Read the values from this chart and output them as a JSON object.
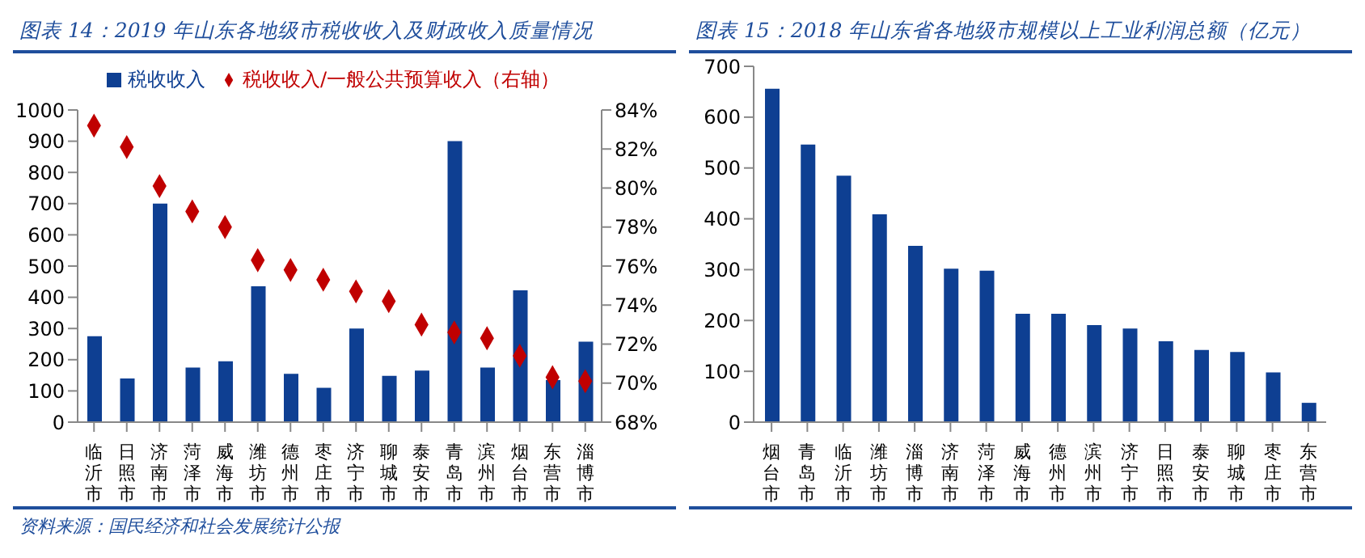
{
  "chart_data": [
    {
      "type": "bar",
      "title": "图表 14：2019 年山东各地级市税收收入及财政收入质量情况",
      "categories": [
        "临沂市",
        "日照市",
        "济南市",
        "菏泽市",
        "威海市",
        "潍坊市",
        "德州市",
        "枣庄市",
        "济宁市",
        "聊城市",
        "泰安市",
        "青岛市",
        "滨州市",
        "烟台市",
        "东营市",
        "淄博市"
      ],
      "series": [
        {
          "name": "税收收入",
          "color": "#0e3f92",
          "values": [
            275,
            140,
            700,
            175,
            195,
            435,
            155,
            110,
            300,
            148,
            165,
            900,
            175,
            422,
            135,
            258
          ]
        },
        {
          "name": "税收收入/一般公共预算收入（右轴）",
          "type": "scatter",
          "axis": "y2",
          "color": "#c00000",
          "values": [
            83.2,
            82.1,
            80.1,
            78.8,
            78.0,
            76.3,
            75.8,
            75.3,
            74.7,
            74.2,
            73.0,
            72.6,
            72.3,
            71.4,
            70.3,
            70.1
          ]
        }
      ],
      "ylim": [
        0,
        1000
      ],
      "yticks": [
        0,
        100,
        200,
        300,
        400,
        500,
        600,
        700,
        800,
        900,
        1000
      ],
      "y2lim": [
        68,
        84
      ],
      "y2ticks": [
        {
          "value": 68,
          "label": "68%"
        },
        {
          "value": 70,
          "label": "70%"
        },
        {
          "value": 72,
          "label": "72%"
        },
        {
          "value": 74,
          "label": "74%"
        },
        {
          "value": 76,
          "label": "76%"
        },
        {
          "value": 78,
          "label": "78%"
        },
        {
          "value": 80,
          "label": "80%"
        },
        {
          "value": 82,
          "label": "82%"
        },
        {
          "value": 84,
          "label": "84%"
        }
      ],
      "marker": "diamond",
      "legend": "top",
      "annotations": [
        "资料来源：国民经济和社会发展统计公报"
      ]
    },
    {
      "type": "bar",
      "title": "图表 15：2018 年山东省各地级市规模以上工业利润总额（亿元）",
      "categories": [
        "烟台市",
        "青岛市",
        "临沂市",
        "潍坊市",
        "淄博市",
        "济南市",
        "菏泽市",
        "威海市",
        "德州市",
        "滨州市",
        "济宁市",
        "日照市",
        "泰安市",
        "聊城市",
        "枣庄市",
        "东营市"
      ],
      "series": [
        {
          "color": "#0e3f92",
          "values": [
            656,
            546,
            485,
            409,
            347,
            302,
            298,
            213,
            213,
            191,
            184,
            159,
            142,
            138,
            98,
            38
          ]
        }
      ],
      "ylim": [
        0,
        700
      ],
      "yticks": [
        0,
        100,
        200,
        300,
        400,
        500,
        600,
        700
      ]
    }
  ]
}
